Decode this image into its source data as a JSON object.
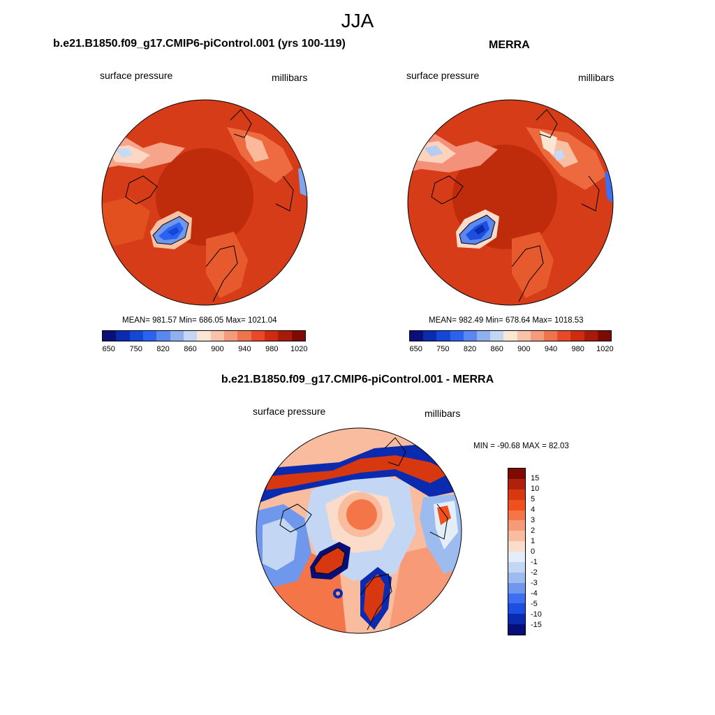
{
  "figure": {
    "season": "JJA"
  },
  "panels": {
    "model": {
      "title": "b.e21.B1850.f09_g17.CMIP6-piControl.001 (yrs 100-119)",
      "variable": "surface pressure",
      "units": "millibars",
      "stats": "MEAN= 981.57  Min= 686.05  Max= 1021.04",
      "mean": 981.57,
      "min": 686.05,
      "max": 1021.04
    },
    "obs": {
      "title": "MERRA",
      "variable": "surface pressure",
      "units": "millibars",
      "stats": "MEAN= 982.49  Min= 678.64  Max= 1018.53",
      "mean": 982.49,
      "min": 678.64,
      "max": 1018.53
    },
    "diff": {
      "title": "b.e21.B1850.f09_g17.CMIP6-piControl.001 - MERRA",
      "variable": "surface pressure",
      "units": "millibars",
      "stats": "MIN = -90.68 MAX =  82.03",
      "min": -90.68,
      "max": 82.03
    }
  },
  "colorbars": {
    "abs": {
      "labels": [
        "650",
        "750",
        "820",
        "860",
        "900",
        "940",
        "980",
        "1020"
      ],
      "colors": [
        "#0a0f7a",
        "#0a2ab0",
        "#1446d8",
        "#2b62f0",
        "#5a87f0",
        "#8fb0ef",
        "#c3d7f5",
        "#fbe6d4",
        "#f8c3a8",
        "#f49b7c",
        "#f0734f",
        "#e84a28",
        "#d02a10",
        "#a81a0a",
        "#7f0a02"
      ]
    },
    "diff": {
      "labels": [
        "15",
        "10",
        "5",
        "4",
        "3",
        "2",
        "1",
        "0",
        "-1",
        "-2",
        "-3",
        "-4",
        "-5",
        "-10",
        "-15"
      ],
      "colors": [
        "#7f0a02",
        "#b0200a",
        "#d8380f",
        "#f0501c",
        "#f47648",
        "#f79a78",
        "#f9bc9f",
        "#fbdcca",
        "#e4eef8",
        "#c3d7f5",
        "#9cbcf0",
        "#6f98ec",
        "#3d6ff0",
        "#1c4fe0",
        "#0a2ab0",
        "#080e78"
      ]
    }
  }
}
